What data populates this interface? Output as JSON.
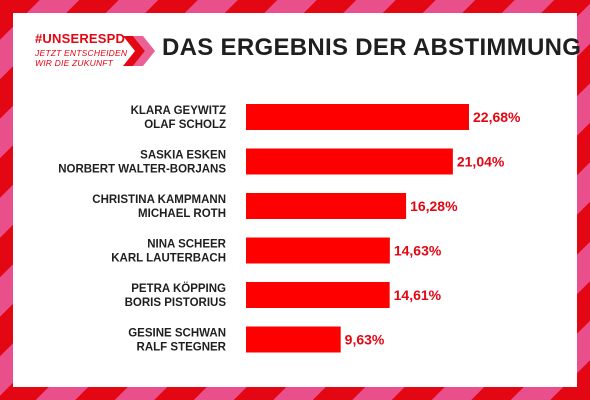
{
  "header": {
    "hashtag": "#UNSERESPD",
    "tagline_line1": "JETZT ENTSCHEIDEN",
    "tagline_line2": "WIR DIE ZUKUNFT",
    "title": "DAS ERGEBNIS DER ABSTIMMUNG"
  },
  "colors": {
    "accent_red": "#e30613",
    "accent_pink": "#e94f8a",
    "bar": "#ff0000",
    "text_dark": "#1f1f1f"
  },
  "chart_data": {
    "type": "bar",
    "orientation": "horizontal",
    "title": "DAS ERGEBNIS DER ABSTIMMUNG",
    "categories": [
      [
        "KLARA GEYWITZ",
        "OLAF SCHOLZ"
      ],
      [
        "SASKIA ESKEN",
        "NORBERT WALTER-BORJANS"
      ],
      [
        "CHRISTINA KAMPMANN",
        "MICHAEL ROTH"
      ],
      [
        "NINA SCHEER",
        "KARL LAUTERBACH"
      ],
      [
        "PETRA KÖPPING",
        "BORIS PISTORIUS"
      ],
      [
        "GESINE SCHWAN",
        "RALF STEGNER"
      ]
    ],
    "values": [
      22.68,
      21.04,
      16.28,
      14.63,
      14.61,
      9.63
    ],
    "value_labels": [
      "22,68%",
      "21,04%",
      "16,28%",
      "14,63%",
      "14,61%",
      "9,63%"
    ],
    "xlim": [
      0,
      22.68
    ],
    "grid": false,
    "xlabel": "",
    "ylabel": ""
  }
}
